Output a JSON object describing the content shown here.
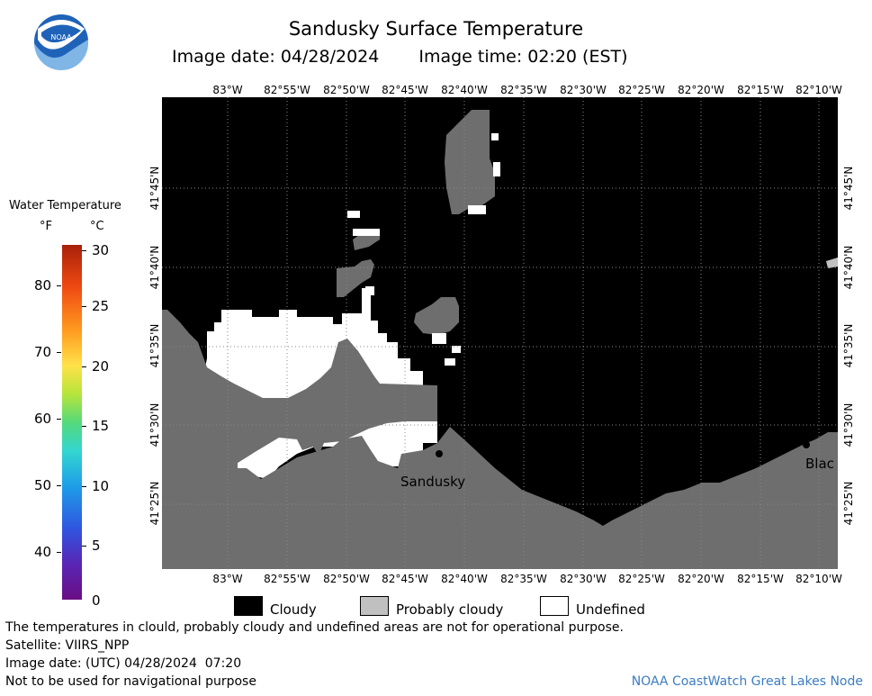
{
  "header": {
    "title": "Sandusky Surface Temperature",
    "image_date": "Image date: 04/28/2024",
    "image_time": "Image time: 02:20 (EST)"
  },
  "logo": {
    "icon": "noaa-logo-icon",
    "text": "NOAA"
  },
  "axes": {
    "longitude_labels": [
      "83°W",
      "82°55'W",
      "82°50'W",
      "82°45'W",
      "82°40'W",
      "82°35'W",
      "82°30'W",
      "82°25'W",
      "82°20'W",
      "82°15'W",
      "82°10'W"
    ],
    "latitude_labels": [
      "41°45'N",
      "41°40'N",
      "41°35'N",
      "41°30'N",
      "41°25'N"
    ]
  },
  "map": {
    "place_label": "Sandusky",
    "edge_label": "Blac",
    "colors": {
      "water_cloudy": "#000000",
      "land": "#6e6e6e",
      "undefined": "#ffffff",
      "grid": "#888888"
    }
  },
  "color_scale": {
    "title": "Water Temperature",
    "unit_f": "°F",
    "unit_c": "°C",
    "fahrenheit_ticks": [
      "80",
      "70",
      "60",
      "50",
      "40"
    ],
    "celsius_ticks": [
      "30",
      "25",
      "20",
      "15",
      "10",
      "5",
      "0"
    ]
  },
  "legend": {
    "items": [
      {
        "label": "Cloudy",
        "color": "#000000"
      },
      {
        "label": "Probably cloudy",
        "color": "#c0c0c0"
      },
      {
        "label": "Undefined",
        "color": "#ffffff"
      }
    ]
  },
  "footer": {
    "disclaimer": "The temperatures in clould, probably cloudy and undefined areas are not for operational purpose.",
    "satellite": "Satellite: VIIRS_NPP",
    "utc_date": "Image date: (UTC) 04/28/2024  07:20",
    "navigation_note": "Not to be used for navigational purpose",
    "credit": "NOAA CoastWatch Great Lakes Node"
  }
}
